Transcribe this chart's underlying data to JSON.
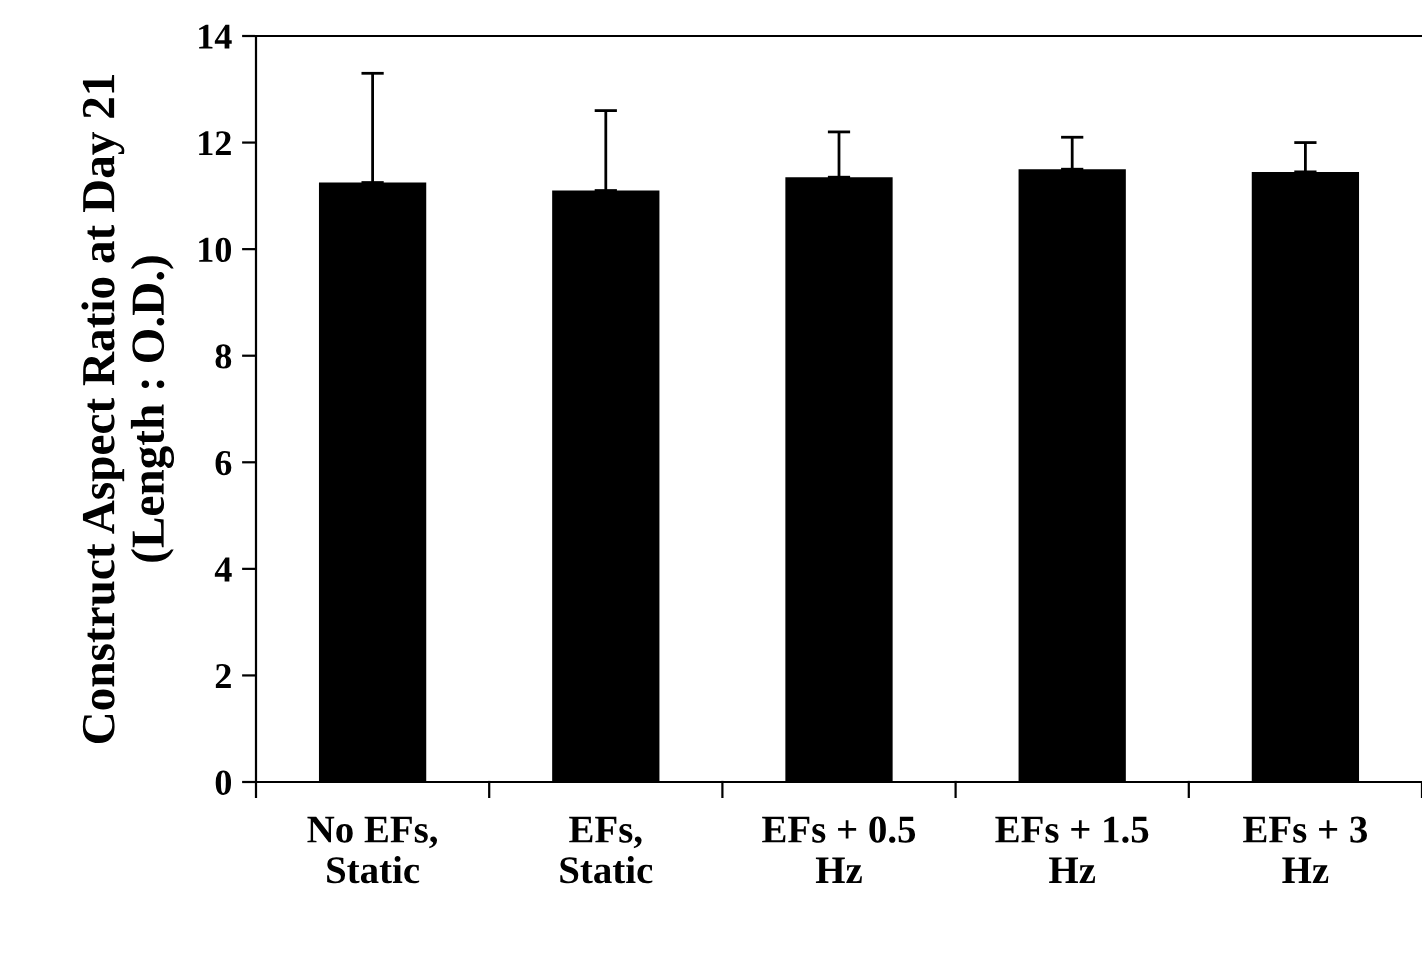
{
  "chart_data": {
    "type": "bar",
    "ylabel": "Construct Aspect Ratio at Day 21\n(Length : O.D.)",
    "categories": [
      "No EFs,\nStatic",
      "EFs,\nStatic",
      "EFs + 0.5\nHz",
      "EFs + 1.5\nHz",
      "EFs + 3\nHz"
    ],
    "values": [
      11.25,
      11.1,
      11.35,
      11.5,
      11.45
    ],
    "errors": [
      [
        11.25,
        13.3
      ],
      [
        11.1,
        12.6
      ],
      [
        11.35,
        12.2
      ],
      [
        11.5,
        12.1
      ],
      [
        11.45,
        12.0
      ]
    ],
    "color": "#000000",
    "ylim": [
      0,
      14
    ],
    "yticks": [
      0,
      2,
      4,
      6,
      8,
      10,
      12,
      14
    ],
    "grid": false,
    "legend": false
  }
}
